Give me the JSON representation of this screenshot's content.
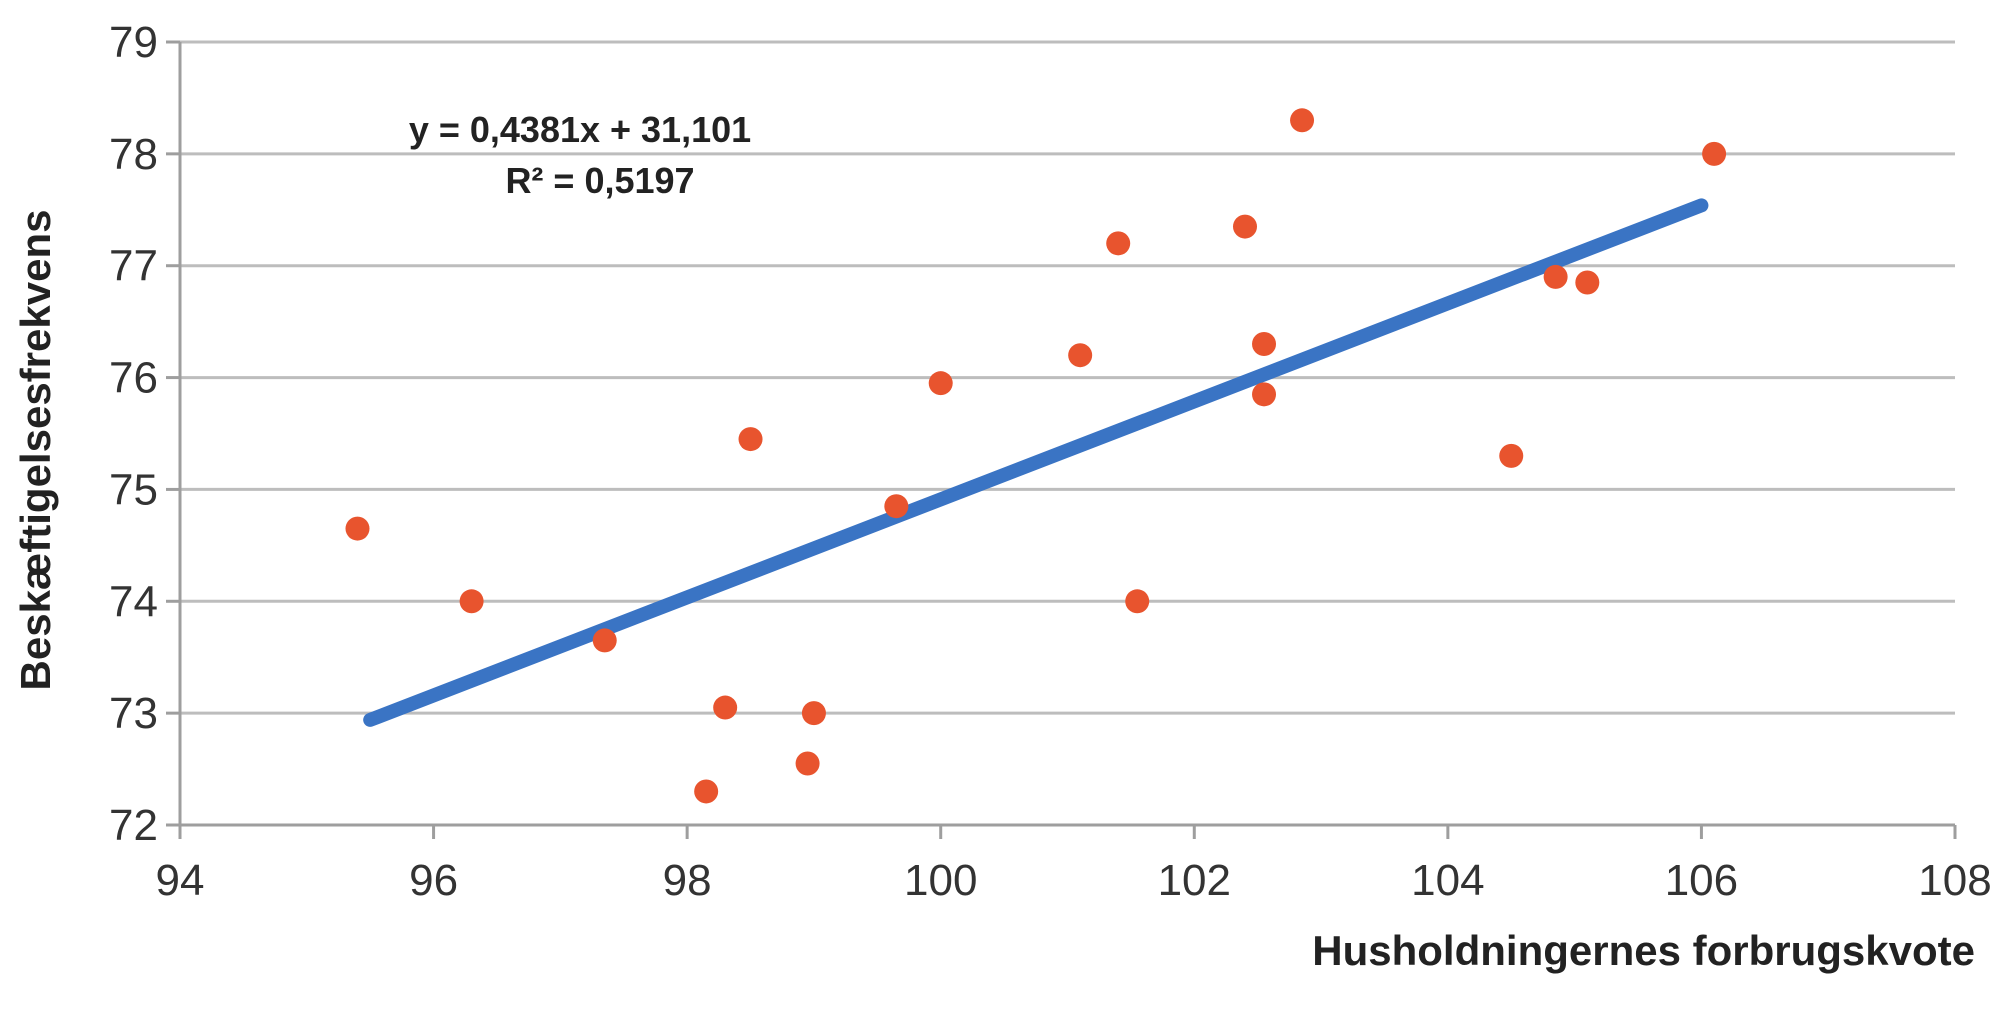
{
  "chart_data": {
    "type": "scatter",
    "xlabel": "Husholdningernes forbrugskvote",
    "ylabel": "Beskæftigelsesfrekvens",
    "xlim": [
      94,
      108
    ],
    "ylim": [
      72,
      79
    ],
    "x_ticks": [
      "94",
      "96",
      "98",
      "100",
      "102",
      "104",
      "106",
      "108"
    ],
    "y_ticks": [
      "72",
      "73",
      "74",
      "75",
      "76",
      "77",
      "78",
      "79"
    ],
    "grid": "horizontal",
    "colors": {
      "points": "#e8542e",
      "trendline": "#3a74c4"
    },
    "points": [
      {
        "x": 95.4,
        "y": 74.65
      },
      {
        "x": 96.3,
        "y": 74.0
      },
      {
        "x": 97.35,
        "y": 73.65
      },
      {
        "x": 98.15,
        "y": 72.3
      },
      {
        "x": 98.3,
        "y": 73.05
      },
      {
        "x": 98.5,
        "y": 75.45
      },
      {
        "x": 98.95,
        "y": 72.55
      },
      {
        "x": 99.0,
        "y": 73.0
      },
      {
        "x": 99.65,
        "y": 74.85
      },
      {
        "x": 100.0,
        "y": 75.95
      },
      {
        "x": 101.1,
        "y": 76.2
      },
      {
        "x": 101.4,
        "y": 77.2
      },
      {
        "x": 101.55,
        "y": 74.0
      },
      {
        "x": 102.4,
        "y": 77.35
      },
      {
        "x": 102.55,
        "y": 76.3
      },
      {
        "x": 102.55,
        "y": 75.85
      },
      {
        "x": 102.85,
        "y": 78.3
      },
      {
        "x": 104.5,
        "y": 75.3
      },
      {
        "x": 104.85,
        "y": 76.9
      },
      {
        "x": 105.1,
        "y": 76.85
      },
      {
        "x": 106.1,
        "y": 78.0
      }
    ],
    "trendline": {
      "slope": 0.4381,
      "intercept": 31.101,
      "x_range": [
        95.5,
        106.0
      ],
      "equation_label": "y = 0,4381x + 31,101",
      "r2_label": "R² = 0,5197"
    }
  }
}
